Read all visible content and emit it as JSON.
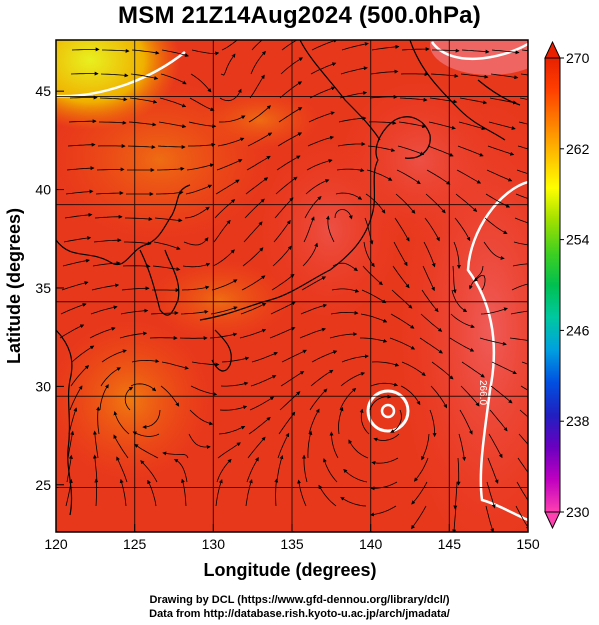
{
  "title": "MSM 21Z14Aug2024 (500.0hPa)",
  "axes": {
    "xlabel": "Longitude (degrees)",
    "ylabel": "Latitude  (degrees)",
    "xticks": [
      "120",
      "125",
      "130",
      "135",
      "140",
      "145",
      "150"
    ],
    "yticks": [
      "25",
      "30",
      "35",
      "40",
      "45"
    ],
    "xrange": [
      120,
      150
    ],
    "yrange": [
      22.6,
      47.6
    ]
  },
  "colorbar": {
    "ticks": [
      "270",
      "262",
      "254",
      "246",
      "238",
      "230"
    ],
    "min": 230,
    "max": 270,
    "colors": [
      "#ff40b0",
      "#c000c0",
      "#6a00c0",
      "#2020c0",
      "#0050e0",
      "#00a0e0",
      "#00c8a0",
      "#00c050",
      "#40d020",
      "#a0e000",
      "#ffff00",
      "#ffc000",
      "#ff8000",
      "#ff4000",
      "#e82000"
    ]
  },
  "contour_label": "266.0",
  "credits": [
    "Drawing by DCL (https://www.gfd-dennou.org/library/dcl/)",
    "Data from http://database.rish.kyoto-u.ac.jp/arch/jmadata/"
  ]
}
